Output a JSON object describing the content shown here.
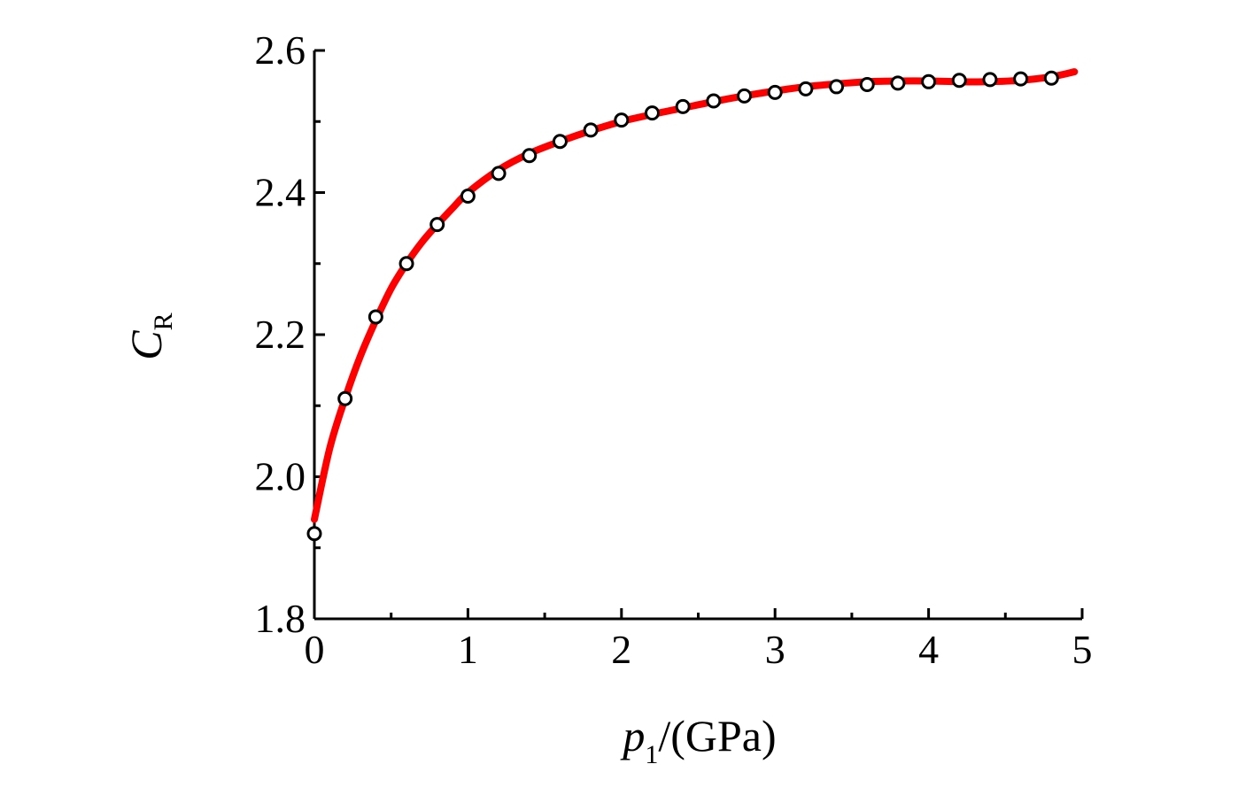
{
  "chart_data": {
    "type": "line",
    "title": "",
    "xlabel": {
      "symbol": "p",
      "subscript": "1",
      "suffix": "/(GPa)"
    },
    "ylabel": {
      "symbol": "C",
      "subscript": "R"
    },
    "xlim": [
      0,
      5
    ],
    "ylim": [
      1.8,
      2.6
    ],
    "xticks": [
      0,
      1,
      2,
      3,
      4,
      5
    ],
    "xtick_labels": [
      "0",
      "1",
      "2",
      "3",
      "4",
      "5"
    ],
    "yticks": [
      1.8,
      2.0,
      2.2,
      2.4,
      2.6
    ],
    "ytick_labels": [
      "1.8",
      "2.0",
      "2.2",
      "2.4",
      "2.6"
    ],
    "grid": false,
    "series": [
      {
        "kind": "line",
        "color": "#ff0000",
        "x": [
          0,
          0.1,
          0.2,
          0.3,
          0.4,
          0.5,
          0.6,
          0.7,
          0.8,
          0.9,
          1.0,
          1.2,
          1.4,
          1.6,
          1.8,
          2.0,
          2.2,
          2.4,
          2.6,
          2.8,
          3.0,
          3.2,
          3.4,
          3.6,
          3.8,
          4.0,
          4.2,
          4.4,
          4.6,
          4.8,
          4.95
        ],
        "y": [
          1.94,
          2.04,
          2.11,
          2.17,
          2.22,
          2.265,
          2.3,
          2.33,
          2.355,
          2.378,
          2.4,
          2.432,
          2.455,
          2.472,
          2.487,
          2.5,
          2.51,
          2.519,
          2.528,
          2.536,
          2.543,
          2.549,
          2.553,
          2.556,
          2.557,
          2.557,
          2.556,
          2.556,
          2.558,
          2.563,
          2.57
        ]
      },
      {
        "kind": "scatter",
        "color": "#000000",
        "fill": "#ffffff",
        "x": [
          0,
          0.2,
          0.4,
          0.6,
          0.8,
          1.0,
          1.2,
          1.4,
          1.6,
          1.8,
          2.0,
          2.2,
          2.4,
          2.6,
          2.8,
          3.0,
          3.2,
          3.4,
          3.6,
          3.8,
          4.0,
          4.2,
          4.4,
          4.6,
          4.8
        ],
        "y": [
          1.92,
          2.11,
          2.225,
          2.3,
          2.355,
          2.395,
          2.427,
          2.452,
          2.472,
          2.488,
          2.502,
          2.512,
          2.521,
          2.529,
          2.536,
          2.541,
          2.546,
          2.549,
          2.552,
          2.554,
          2.556,
          2.558,
          2.559,
          2.56,
          2.561
        ]
      }
    ]
  }
}
